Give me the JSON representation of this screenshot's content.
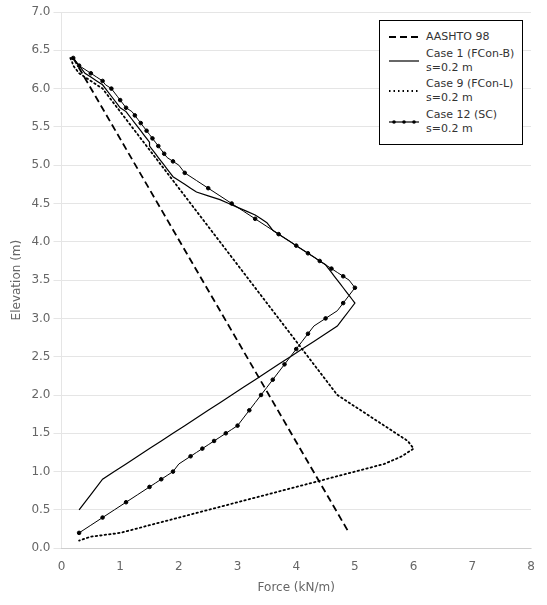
{
  "chart_data": {
    "type": "line",
    "xlabel": "Force (kN/m)",
    "ylabel": "Elevation (m)",
    "xlim": [
      0,
      8
    ],
    "ylim": [
      0,
      7
    ],
    "xticks": [
      0,
      1,
      2,
      3,
      4,
      5,
      6,
      7,
      8
    ],
    "yticks": [
      {
        "value": 0,
        "label": "0.0"
      },
      {
        "value": 0.5,
        "label": "0.5"
      },
      {
        "value": 1,
        "label": "1.0"
      },
      {
        "value": 1.5,
        "label": "1.5"
      },
      {
        "value": 2,
        "label": "2.0"
      },
      {
        "value": 2.5,
        "label": "2.5"
      },
      {
        "value": 3,
        "label": "3.0"
      },
      {
        "value": 3.5,
        "label": "3.5"
      },
      {
        "value": 4,
        "label": "4.0"
      },
      {
        "value": 4.5,
        "label": "4.5"
      },
      {
        "value": 5,
        "label": "5.0"
      },
      {
        "value": 5.5,
        "label": "5.5"
      },
      {
        "value": 6,
        "label": "6.0"
      },
      {
        "value": 6.5,
        "label": "6.5"
      },
      {
        "value": 7,
        "label": "7.0"
      }
    ],
    "grid": "y",
    "legend": "upper right",
    "series": [
      {
        "name": "AASHTO 98",
        "color": "#000000",
        "line_style": "dashed",
        "x": [
          0.2,
          4.9
        ],
        "values": [
          6.4,
          0.2
        ]
      },
      {
        "name": "Case 1 (FCon-B)\ns=0.2 m",
        "color": "#000000",
        "line_style": "solid",
        "x": [
          0.2,
          0.25,
          0.3,
          0.35,
          0.4,
          0.5,
          0.6,
          0.7,
          0.75,
          0.85,
          0.95,
          1.0,
          1.1,
          1.2,
          1.25,
          1.3,
          1.35,
          1.4,
          1.45,
          1.5,
          1.5,
          1.55,
          1.6,
          1.65,
          1.7,
          1.75,
          1.8,
          1.85,
          1.9,
          2.0,
          2.1,
          2.2,
          2.3,
          2.5,
          2.7,
          2.85,
          3.0,
          3.15,
          3.3,
          3.4,
          3.5,
          3.55,
          3.6,
          3.7,
          3.8,
          3.9,
          4.0,
          4.1,
          4.2,
          4.3,
          4.4,
          4.5,
          4.55,
          4.6,
          4.65,
          4.7,
          4.75,
          4.8,
          4.85,
          4.9,
          4.95,
          5.0,
          4.9,
          4.8,
          4.7,
          4.5,
          4.3,
          4.1,
          3.9,
          3.7,
          3.5,
          3.3,
          3.1,
          2.9,
          2.7,
          2.5,
          2.3,
          2.1,
          1.9,
          1.7,
          1.5,
          1.3,
          1.1,
          0.9,
          0.7,
          0.5,
          0.3
        ],
        "values": [
          6.4,
          6.35,
          6.3,
          6.25,
          6.2,
          6.15,
          6.1,
          6.05,
          6.0,
          5.9,
          5.8,
          5.75,
          5.7,
          5.6,
          5.55,
          5.5,
          5.45,
          5.4,
          5.35,
          5.3,
          5.25,
          5.2,
          5.15,
          5.1,
          5.05,
          5.0,
          4.95,
          4.9,
          4.85,
          4.8,
          4.75,
          4.7,
          4.65,
          4.6,
          4.55,
          4.5,
          4.45,
          4.4,
          4.35,
          4.3,
          4.25,
          4.2,
          4.15,
          4.1,
          4.05,
          4.0,
          3.95,
          3.9,
          3.85,
          3.8,
          3.75,
          3.7,
          3.65,
          3.6,
          3.55,
          3.5,
          3.45,
          3.4,
          3.35,
          3.3,
          3.25,
          3.2,
          3.1,
          3.0,
          2.9,
          2.8,
          2.7,
          2.6,
          2.5,
          2.4,
          2.3,
          2.2,
          2.1,
          2.0,
          1.9,
          1.8,
          1.7,
          1.6,
          1.5,
          1.4,
          1.3,
          1.2,
          1.1,
          1.0,
          0.9,
          0.7,
          0.5
        ]
      },
      {
        "name": "Case 9 (FCon-L)\ns=0.2 m",
        "color": "#000000",
        "line_style": "dotted",
        "x": [
          0.15,
          0.18,
          0.2,
          0.25,
          0.3,
          0.4,
          0.5,
          0.6,
          0.7,
          0.75,
          0.8,
          0.9,
          1.0,
          1.05,
          1.1,
          1.15,
          1.2,
          1.25,
          1.3,
          1.4,
          1.5,
          1.6,
          1.7,
          1.8,
          1.9,
          2.0,
          2.1,
          2.2,
          2.3,
          2.4,
          2.5,
          2.6,
          2.7,
          2.8,
          2.85,
          2.9,
          3.0,
          3.05,
          3.1,
          3.15,
          3.2,
          3.3,
          3.4,
          3.5,
          3.6,
          3.7,
          3.75,
          3.8,
          3.85,
          3.9,
          4.0,
          4.1,
          4.2,
          4.3,
          4.4,
          4.5,
          4.7,
          4.9,
          5.1,
          5.3,
          5.5,
          5.7,
          5.9,
          6.0,
          5.8,
          5.5,
          5.0,
          4.5,
          4.0,
          3.5,
          3.0,
          2.5,
          2.0,
          1.5,
          1.0,
          0.5,
          0.3
        ],
        "values": [
          6.4,
          6.35,
          6.3,
          6.25,
          6.2,
          6.15,
          6.1,
          6.05,
          6.0,
          5.95,
          5.9,
          5.8,
          5.7,
          5.65,
          5.6,
          5.55,
          5.5,
          5.45,
          5.4,
          5.3,
          5.2,
          5.1,
          5.0,
          4.9,
          4.8,
          4.7,
          4.6,
          4.5,
          4.4,
          4.3,
          4.2,
          4.1,
          4.0,
          3.9,
          3.85,
          3.8,
          3.7,
          3.65,
          3.6,
          3.55,
          3.5,
          3.4,
          3.3,
          3.2,
          3.1,
          3.0,
          2.95,
          2.9,
          2.85,
          2.8,
          2.7,
          2.6,
          2.5,
          2.4,
          2.3,
          2.2,
          2.0,
          1.9,
          1.8,
          1.7,
          1.6,
          1.5,
          1.4,
          1.3,
          1.2,
          1.1,
          1.0,
          0.9,
          0.8,
          0.7,
          0.6,
          0.5,
          0.4,
          0.3,
          0.2,
          0.15,
          0.1
        ]
      },
      {
        "name": "Case 12 (SC)\ns=0.2 m",
        "color": "#000000",
        "line_style": "solid",
        "marker": "dot",
        "x": [
          0.2,
          0.25,
          0.3,
          0.4,
          0.5,
          0.6,
          0.7,
          0.75,
          0.85,
          0.95,
          1.0,
          1.05,
          1.1,
          1.2,
          1.25,
          1.3,
          1.35,
          1.4,
          1.45,
          1.5,
          1.55,
          1.6,
          1.65,
          1.7,
          1.75,
          1.8,
          1.9,
          2.0,
          2.1,
          2.3,
          2.5,
          2.7,
          2.9,
          3.1,
          3.3,
          3.5,
          3.7,
          3.9,
          4.0,
          4.1,
          4.2,
          4.3,
          4.4,
          4.5,
          4.6,
          4.7,
          4.8,
          4.9,
          5.0,
          4.9,
          4.8,
          4.7,
          4.5,
          4.3,
          4.2,
          4.1,
          4.0,
          3.9,
          3.8,
          3.7,
          3.6,
          3.5,
          3.4,
          3.3,
          3.2,
          3.1,
          3.0,
          2.9,
          2.8,
          2.7,
          2.6,
          2.5,
          2.4,
          2.3,
          2.2,
          2.0,
          1.9,
          1.8,
          1.7,
          1.6,
          1.5,
          1.3,
          1.1,
          0.9,
          0.7,
          0.5,
          0.3
        ],
        "values": [
          6.4,
          6.35,
          6.3,
          6.25,
          6.2,
          6.15,
          6.1,
          6.05,
          6.0,
          5.9,
          5.85,
          5.8,
          5.75,
          5.7,
          5.65,
          5.6,
          5.55,
          5.5,
          5.45,
          5.4,
          5.35,
          5.3,
          5.25,
          5.2,
          5.15,
          5.1,
          5.05,
          5.0,
          4.9,
          4.8,
          4.7,
          4.6,
          4.5,
          4.4,
          4.3,
          4.2,
          4.1,
          4.0,
          3.95,
          3.9,
          3.85,
          3.8,
          3.75,
          3.7,
          3.65,
          3.6,
          3.55,
          3.5,
          3.4,
          3.3,
          3.2,
          3.1,
          3.0,
          2.9,
          2.8,
          2.7,
          2.6,
          2.5,
          2.4,
          2.3,
          2.2,
          2.1,
          2.0,
          1.9,
          1.8,
          1.7,
          1.6,
          1.55,
          1.5,
          1.45,
          1.4,
          1.35,
          1.3,
          1.25,
          1.2,
          1.1,
          1.0,
          0.95,
          0.9,
          0.85,
          0.8,
          0.7,
          0.6,
          0.5,
          0.4,
          0.3,
          0.2
        ]
      }
    ]
  }
}
